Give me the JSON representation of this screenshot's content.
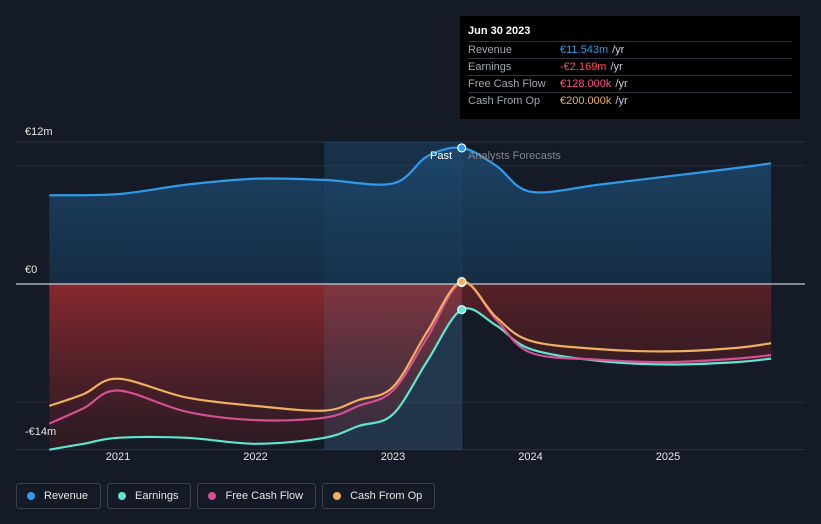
{
  "chart_data": {
    "type": "line",
    "y_labels": [
      "€12m",
      "€0",
      "-€14m"
    ],
    "x_ticks": [
      {
        "label": "2021",
        "t": 2021.0
      },
      {
        "label": "2022",
        "t": 2022.0
      },
      {
        "label": "2023",
        "t": 2023.0
      },
      {
        "label": "2024",
        "t": 2024.0
      },
      {
        "label": "2025",
        "t": 2025.0
      }
    ],
    "ylim": [
      -14,
      12
    ],
    "past_label": "Past",
    "forecast_label": "Analysts Forecasts",
    "past_end": 2023.5,
    "highlight_start": 2022.5,
    "units": "€m",
    "series": [
      {
        "name": "Revenue",
        "color": "#2f9bea",
        "x": [
          2020.5,
          2021.0,
          2021.5,
          2022.0,
          2022.5,
          2023.0,
          2023.25,
          2023.5,
          2023.75,
          2024.0,
          2024.5,
          2025.0,
          2025.5,
          2025.75
        ],
        "y": [
          7.5,
          7.6,
          8.4,
          8.9,
          8.8,
          8.5,
          10.8,
          11.5,
          10.0,
          7.8,
          8.4,
          9.1,
          9.8,
          10.2
        ]
      },
      {
        "name": "Earnings",
        "color": "#5ee6d0",
        "x": [
          2020.5,
          2020.75,
          2021.0,
          2021.5,
          2022.0,
          2022.5,
          2022.75,
          2023.0,
          2023.25,
          2023.5,
          2023.75,
          2024.0,
          2024.5,
          2025.0,
          2025.5,
          2025.75
        ],
        "y": [
          -14.0,
          -13.5,
          -13.0,
          -13.0,
          -13.5,
          -13.0,
          -12.0,
          -11.0,
          -6.5,
          -2.169,
          -3.5,
          -5.5,
          -6.5,
          -6.8,
          -6.6,
          -6.3
        ]
      },
      {
        "name": "Free Cash Flow",
        "color": "#d44f94",
        "x": [
          2020.5,
          2020.75,
          2021.0,
          2021.5,
          2022.0,
          2022.5,
          2022.75,
          2023.0,
          2023.25,
          2023.5,
          2023.75,
          2024.0,
          2024.5,
          2025.0,
          2025.5,
          2025.75
        ],
        "y": [
          -11.8,
          -10.5,
          -9.0,
          -10.8,
          -11.5,
          -11.3,
          -10.3,
          -9.0,
          -4.5,
          0.128,
          -3.0,
          -5.8,
          -6.4,
          -6.6,
          -6.3,
          -6.0
        ]
      },
      {
        "name": "Cash From Op",
        "color": "#f0b060",
        "x": [
          2020.5,
          2020.75,
          2021.0,
          2021.5,
          2022.0,
          2022.5,
          2022.75,
          2023.0,
          2023.25,
          2023.5,
          2023.75,
          2024.0,
          2024.5,
          2025.0,
          2025.5,
          2025.75
        ],
        "y": [
          -10.3,
          -9.3,
          -8.0,
          -9.6,
          -10.3,
          -10.7,
          -9.8,
          -8.7,
          -4.0,
          0.2,
          -2.8,
          -4.8,
          -5.5,
          -5.7,
          -5.4,
          -5.0
        ]
      }
    ]
  },
  "tooltip": {
    "date": "Jun 30 2023",
    "rows": [
      {
        "label": "Revenue",
        "value": "€11.543m",
        "unit": "/yr",
        "color": "#2f9bea"
      },
      {
        "label": "Earnings",
        "value": "-€2.169m",
        "unit": "/yr",
        "color": "#ff4d4f"
      },
      {
        "label": "Free Cash Flow",
        "value": "€128.000k",
        "unit": "/yr",
        "color": "#ff4d8a"
      },
      {
        "label": "Cash From Op",
        "value": "€200.000k",
        "unit": "/yr",
        "color": "#f0b060"
      }
    ]
  },
  "legend": [
    {
      "label": "Revenue",
      "color": "#2f9bea"
    },
    {
      "label": "Earnings",
      "color": "#5ee6d0"
    },
    {
      "label": "Free Cash Flow",
      "color": "#d44f94"
    },
    {
      "label": "Cash From Op",
      "color": "#f0b060"
    }
  ]
}
